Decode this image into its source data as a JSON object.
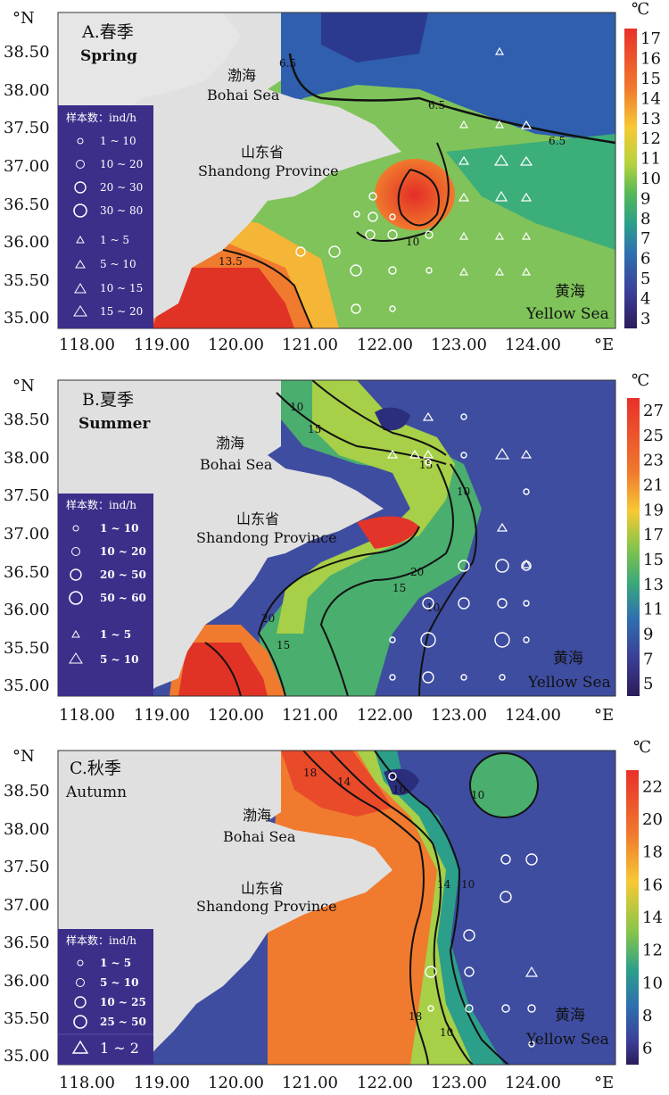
{
  "lat_labels": [
    "38.50",
    "38.00",
    "37.50",
    "37.00",
    "36.50",
    "36.00",
    "35.50",
    "35.00"
  ],
  "lon_labels": [
    "118.00",
    "119.00",
    "120.00",
    "121.00",
    "122.00",
    "123.00",
    "124.00"
  ],
  "lat_unit": "°N",
  "lon_unit": "°E",
  "temp_unit": "℃",
  "bohai_cn": "渤海",
  "bohai_en": "Bohai Sea",
  "shandong_cn": "山东省",
  "shandong_en": "Shandong Province",
  "yellow_cn": "黄海",
  "yellow_en": "Yellow Sea",
  "panels": [
    {
      "title_cn": "A.春季",
      "title_en": "Spring",
      "colorbar": [
        "17",
        "16",
        "15",
        "14",
        "13",
        "12",
        "11",
        "10",
        "9",
        "8",
        "7",
        "6",
        "5",
        "4",
        "3"
      ],
      "contours": [
        "6.5",
        "6.5",
        "6.5",
        "10",
        "13.5"
      ],
      "legend_title": "样本数：ind/h",
      "legend_circles": [
        "1 ~ 10",
        "10 ~ 20",
        "20 ~ 30",
        "30 ~ 80"
      ],
      "legend_triangles": [
        "1 ~ 5",
        "5 ~ 10",
        "10 ~ 15",
        "15 ~ 20"
      ]
    },
    {
      "title_cn": "B.夏季",
      "title_en": "Summer",
      "colorbar": [
        "27",
        "25",
        "23",
        "21",
        "19",
        "17",
        "15",
        "13",
        "11",
        "9",
        "7",
        "5"
      ],
      "contours": [
        "10",
        "15",
        "15",
        "10",
        "20",
        "15",
        "10",
        "20",
        "15"
      ],
      "legend_title": "样本数：ind/h",
      "legend_circles": [
        "1 ~ 10",
        "10 ~ 20",
        "20 ~ 50",
        "50 ~ 60"
      ],
      "legend_triangles": [
        "1 ~ 5",
        "5 ~ 10"
      ]
    },
    {
      "title_cn": "C.秋季",
      "title_en": "Autumn",
      "colorbar": [
        "22",
        "20",
        "18",
        "16",
        "14",
        "12",
        "10",
        "8",
        "6"
      ],
      "contours": [
        "18",
        "14",
        "10",
        "10",
        "14",
        "10",
        "18",
        "10"
      ],
      "legend_title": "样本数：ind/h",
      "legend_circles": [
        "1 ~ 5",
        "5 ~ 10",
        "10 ~ 25",
        "25 ~ 50"
      ],
      "legend_triangles": [
        "1 ~ 2"
      ]
    }
  ]
}
